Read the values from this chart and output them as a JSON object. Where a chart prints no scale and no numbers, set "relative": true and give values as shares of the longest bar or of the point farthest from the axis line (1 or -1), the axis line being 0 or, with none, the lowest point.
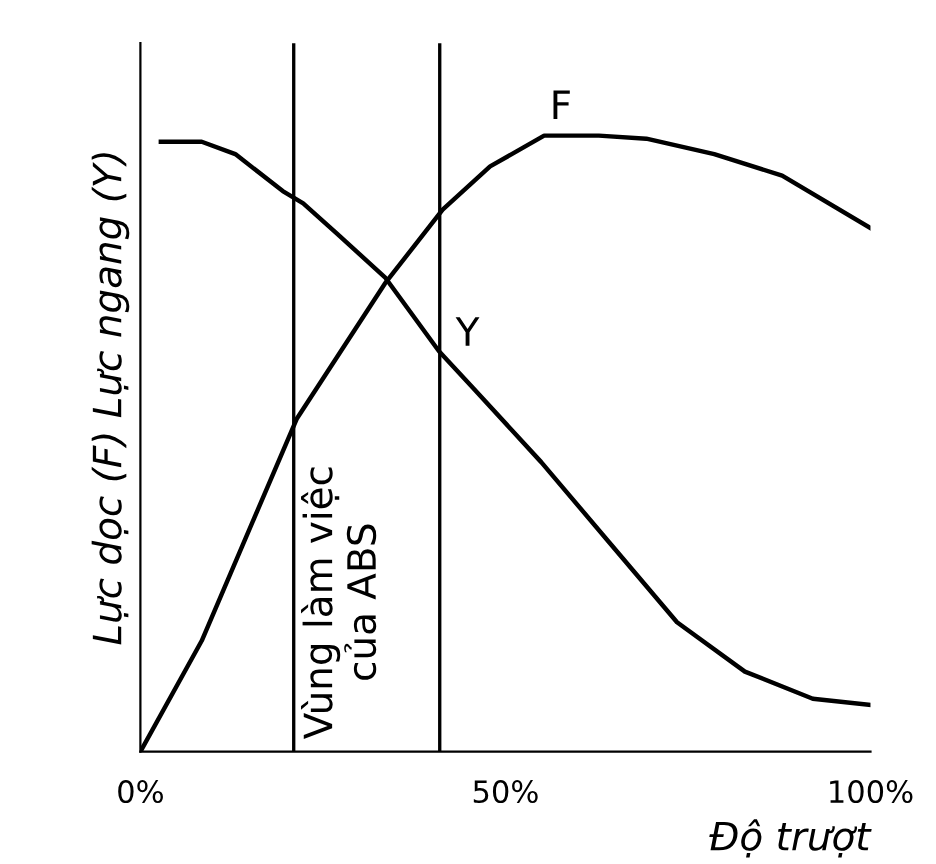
{
  "chart_data": {
    "type": "line",
    "relative": true,
    "xlabel": "Độ trượt",
    "ylabel": "Lực dọc (F) Lực ngang (Y)",
    "xlim": [
      0,
      100
    ],
    "xticks": [
      {
        "value": 0,
        "label": "0%"
      },
      {
        "value": 50,
        "label": "50%"
      },
      {
        "value": 100,
        "label": "100%"
      }
    ],
    "grid": false,
    "legend": false,
    "marker": "none",
    "line_style": "solid",
    "series": [
      {
        "name": "F",
        "color": "#000000",
        "x": [
          0,
          8.4,
          21.4,
          33.5,
          41.4,
          47.9,
          55.3,
          62.8,
          69.3,
          78.6,
          87.9,
          100
        ],
        "values": [
          0,
          0.18,
          0.54,
          0.76,
          0.88,
          0.95,
          1.0,
          1.0,
          0.995,
          0.97,
          0.935,
          0.85
        ]
      },
      {
        "name": "Y",
        "color": "#000000",
        "x": [
          2.8,
          8.4,
          13,
          19.5,
          22.3,
          27,
          33.5,
          40.9,
          45.6,
          54.9,
          64.2,
          73.5,
          82.8,
          92.1,
          100
        ],
        "values": [
          0.99,
          0.99,
          0.97,
          0.91,
          0.89,
          0.84,
          0.77,
          0.65,
          0.59,
          0.47,
          0.34,
          0.21,
          0.13,
          0.086,
          0.076
        ]
      }
    ],
    "ref_lines": [
      {
        "axis": "x",
        "value": 21,
        "label": "Vùng làm việc\ncủa ABS",
        "color": "#000000"
      },
      {
        "axis": "x",
        "value": 41,
        "color": "#000000"
      }
    ]
  }
}
